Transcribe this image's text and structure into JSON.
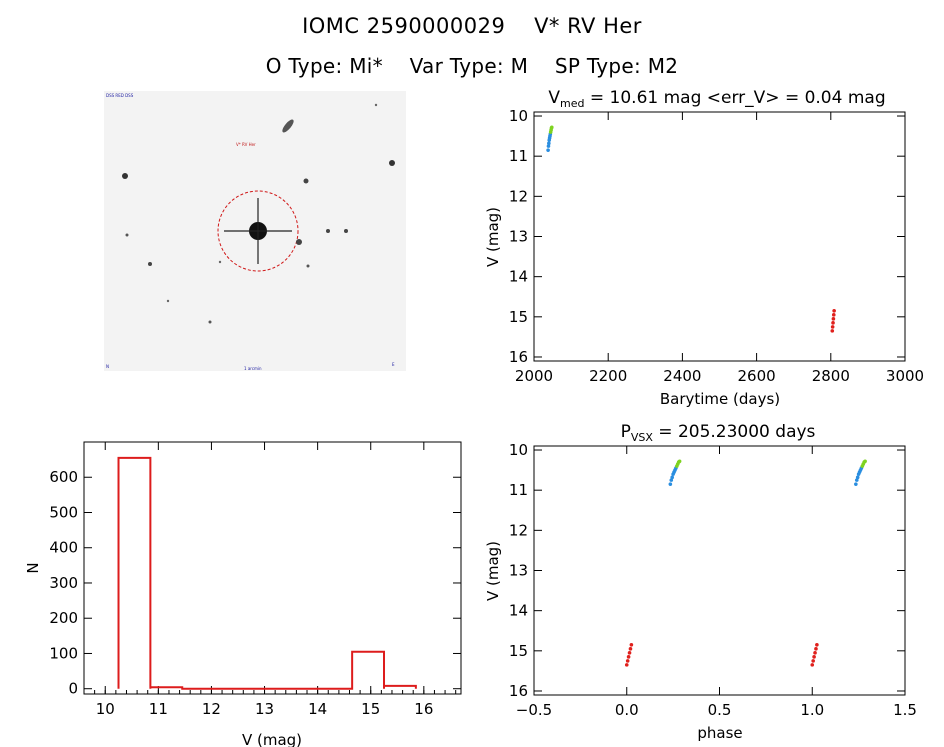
{
  "header": {
    "title_id": "IOMC 2590000029",
    "title_name": "V* RV Her",
    "otype": "O Type: Mi*",
    "vartype": "Var Type: M",
    "sptype": "SP Type: M2"
  },
  "image_panel": {
    "top_left_label": "DSS RED DSS",
    "marker_label": "V* RV Her",
    "bottom_left_label": "N",
    "bottom_center_label": "1 arcmin",
    "bottom_right_label": "E"
  },
  "colors": {
    "hist": "#dd1c1c",
    "red": "#e0201c",
    "blue": "#2a8ee0",
    "green": "#7ed321",
    "axis": "#000000"
  },
  "chart_data": [
    {
      "type": "scatter",
      "title_prefix": "V",
      "title_sub": "med",
      "title_rest": " = 10.61 mag <err_V> = 0.04 mag",
      "xlabel": "Barytime (days)",
      "ylabel": "V (mag)",
      "xlim": [
        2000,
        3000
      ],
      "ylim": [
        16.1,
        9.9
      ],
      "xticks": [
        2000,
        2200,
        2400,
        2600,
        2800,
        3000
      ],
      "yticks": [
        10,
        11,
        12,
        13,
        14,
        15,
        16
      ],
      "series": [
        {
          "color": "#2a8ee0",
          "points": [
            [
              2038,
              10.85
            ],
            [
              2039,
              10.75
            ],
            [
              2040,
              10.68
            ],
            [
              2041,
              10.6
            ],
            [
              2042,
              10.55
            ],
            [
              2043,
              10.5
            ],
            [
              2044,
              10.45
            ]
          ]
        },
        {
          "color": "#7ed321",
          "points": [
            [
              2045,
              10.4
            ],
            [
              2046,
              10.35
            ],
            [
              2047,
              10.3
            ],
            [
              2048,
              10.28
            ]
          ]
        },
        {
          "color": "#e0201c",
          "points": [
            [
              2804,
              15.35
            ],
            [
              2805,
              15.25
            ],
            [
              2806,
              15.15
            ],
            [
              2807,
              15.05
            ],
            [
              2808,
              14.95
            ],
            [
              2809,
              14.85
            ]
          ]
        }
      ]
    },
    {
      "type": "bar",
      "xlabel": "V (mag)",
      "ylabel": "N",
      "xlim": [
        9.6,
        16.7
      ],
      "ylim": [
        -15,
        700
      ],
      "xticks": [
        10,
        11,
        12,
        13,
        14,
        15,
        16
      ],
      "yticks": [
        0,
        100,
        200,
        300,
        400,
        500,
        600
      ],
      "bins": [
        {
          "x0": 10.25,
          "x1": 10.85,
          "count": 655
        },
        {
          "x0": 10.85,
          "x1": 11.45,
          "count": 4
        },
        {
          "x0": 11.45,
          "x1": 14.65,
          "count": 0
        },
        {
          "x0": 14.65,
          "x1": 15.25,
          "count": 105
        },
        {
          "x0": 15.25,
          "x1": 15.85,
          "count": 8
        }
      ]
    },
    {
      "type": "scatter",
      "title_prefix": "P",
      "title_sub": "VSX",
      "title_rest": " = 205.23000 days",
      "xlabel": "phase",
      "ylabel": "V (mag)",
      "xlim": [
        -0.5,
        1.5
      ],
      "ylim": [
        16.1,
        9.9
      ],
      "xticks": [
        -0.5,
        0.0,
        0.5,
        1.0,
        1.5
      ],
      "xtick_labels": [
        "−0.5",
        "0.0",
        "0.5",
        "1.0",
        "1.5"
      ],
      "yticks": [
        10,
        11,
        12,
        13,
        14,
        15,
        16
      ],
      "series": [
        {
          "color": "#2a8ee0",
          "points": [
            [
              0.235,
              10.85
            ],
            [
              0.24,
              10.75
            ],
            [
              0.245,
              10.68
            ],
            [
              0.25,
              10.6
            ],
            [
              0.255,
              10.55
            ],
            [
              0.26,
              10.5
            ],
            [
              0.265,
              10.45
            ],
            [
              1.235,
              10.85
            ],
            [
              1.24,
              10.75
            ],
            [
              1.245,
              10.68
            ],
            [
              1.25,
              10.6
            ],
            [
              1.255,
              10.55
            ],
            [
              1.26,
              10.5
            ],
            [
              1.265,
              10.45
            ]
          ]
        },
        {
          "color": "#7ed321",
          "points": [
            [
              0.27,
              10.4
            ],
            [
              0.275,
              10.35
            ],
            [
              0.28,
              10.3
            ],
            [
              0.285,
              10.28
            ],
            [
              1.27,
              10.4
            ],
            [
              1.275,
              10.35
            ],
            [
              1.28,
              10.3
            ],
            [
              1.285,
              10.28
            ]
          ]
        },
        {
          "color": "#e0201c",
          "points": [
            [
              0.0,
              15.35
            ],
            [
              0.005,
              15.25
            ],
            [
              0.01,
              15.15
            ],
            [
              0.015,
              15.05
            ],
            [
              0.02,
              14.95
            ],
            [
              0.025,
              14.85
            ],
            [
              1.0,
              15.35
            ],
            [
              1.005,
              15.25
            ],
            [
              1.01,
              15.15
            ],
            [
              1.015,
              15.05
            ],
            [
              1.02,
              14.95
            ],
            [
              1.025,
              14.85
            ]
          ]
        }
      ]
    }
  ]
}
